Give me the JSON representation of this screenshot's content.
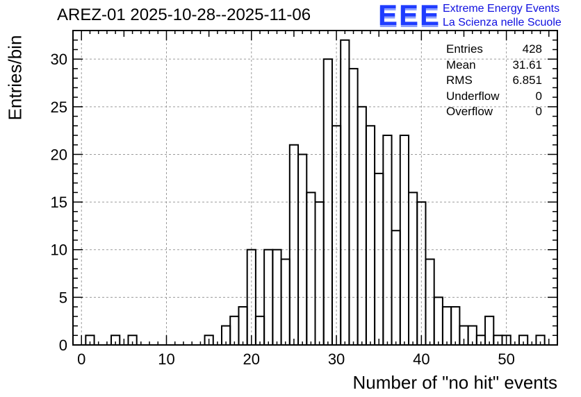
{
  "chart_data": {
    "type": "bar",
    "title": "AREZ-01 2025-10-28--2025-11-06",
    "xlabel": "Number of \"no hit\" events",
    "ylabel": "Entries/bin",
    "xlim": [
      -1,
      56
    ],
    "ylim": [
      0,
      33
    ],
    "bin_width": 1,
    "grid": true,
    "xticks": [
      0,
      10,
      20,
      30,
      40,
      50
    ],
    "yticks": [
      0,
      5,
      10,
      15,
      20,
      25,
      30
    ],
    "bins": [
      {
        "x": 1,
        "count": 1
      },
      {
        "x": 4,
        "count": 1
      },
      {
        "x": 6,
        "count": 1
      },
      {
        "x": 15,
        "count": 1
      },
      {
        "x": 17,
        "count": 2
      },
      {
        "x": 18,
        "count": 3
      },
      {
        "x": 19,
        "count": 4
      },
      {
        "x": 20,
        "count": 10
      },
      {
        "x": 21,
        "count": 3
      },
      {
        "x": 22,
        "count": 10
      },
      {
        "x": 23,
        "count": 10
      },
      {
        "x": 24,
        "count": 9
      },
      {
        "x": 25,
        "count": 21
      },
      {
        "x": 26,
        "count": 20
      },
      {
        "x": 27,
        "count": 16
      },
      {
        "x": 28,
        "count": 15
      },
      {
        "x": 29,
        "count": 30
      },
      {
        "x": 30,
        "count": 23
      },
      {
        "x": 31,
        "count": 32
      },
      {
        "x": 32,
        "count": 29
      },
      {
        "x": 33,
        "count": 25
      },
      {
        "x": 34,
        "count": 23
      },
      {
        "x": 35,
        "count": 18
      },
      {
        "x": 36,
        "count": 22
      },
      {
        "x": 37,
        "count": 12
      },
      {
        "x": 38,
        "count": 22
      },
      {
        "x": 39,
        "count": 16
      },
      {
        "x": 40,
        "count": 15
      },
      {
        "x": 41,
        "count": 9
      },
      {
        "x": 42,
        "count": 5
      },
      {
        "x": 43,
        "count": 4
      },
      {
        "x": 44,
        "count": 4
      },
      {
        "x": 45,
        "count": 2
      },
      {
        "x": 46,
        "count": 2
      },
      {
        "x": 47,
        "count": 1
      },
      {
        "x": 48,
        "count": 3
      },
      {
        "x": 49,
        "count": 1
      },
      {
        "x": 50,
        "count": 1
      },
      {
        "x": 52,
        "count": 1
      },
      {
        "x": 54,
        "count": 1
      }
    ]
  },
  "logo": {
    "mark": "EEE",
    "line1": "Extreme Energy Events",
    "line2": "La Scienza nelle Scuole",
    "color": "#1f3cff"
  },
  "stats": {
    "entries_label": "Entries",
    "entries": "428",
    "mean_label": "Mean",
    "mean": "31.61",
    "rms_label": "RMS",
    "rms": "6.851",
    "underflow_label": "Underflow",
    "underflow": "0",
    "overflow_label": "Overflow",
    "overflow": "0"
  }
}
